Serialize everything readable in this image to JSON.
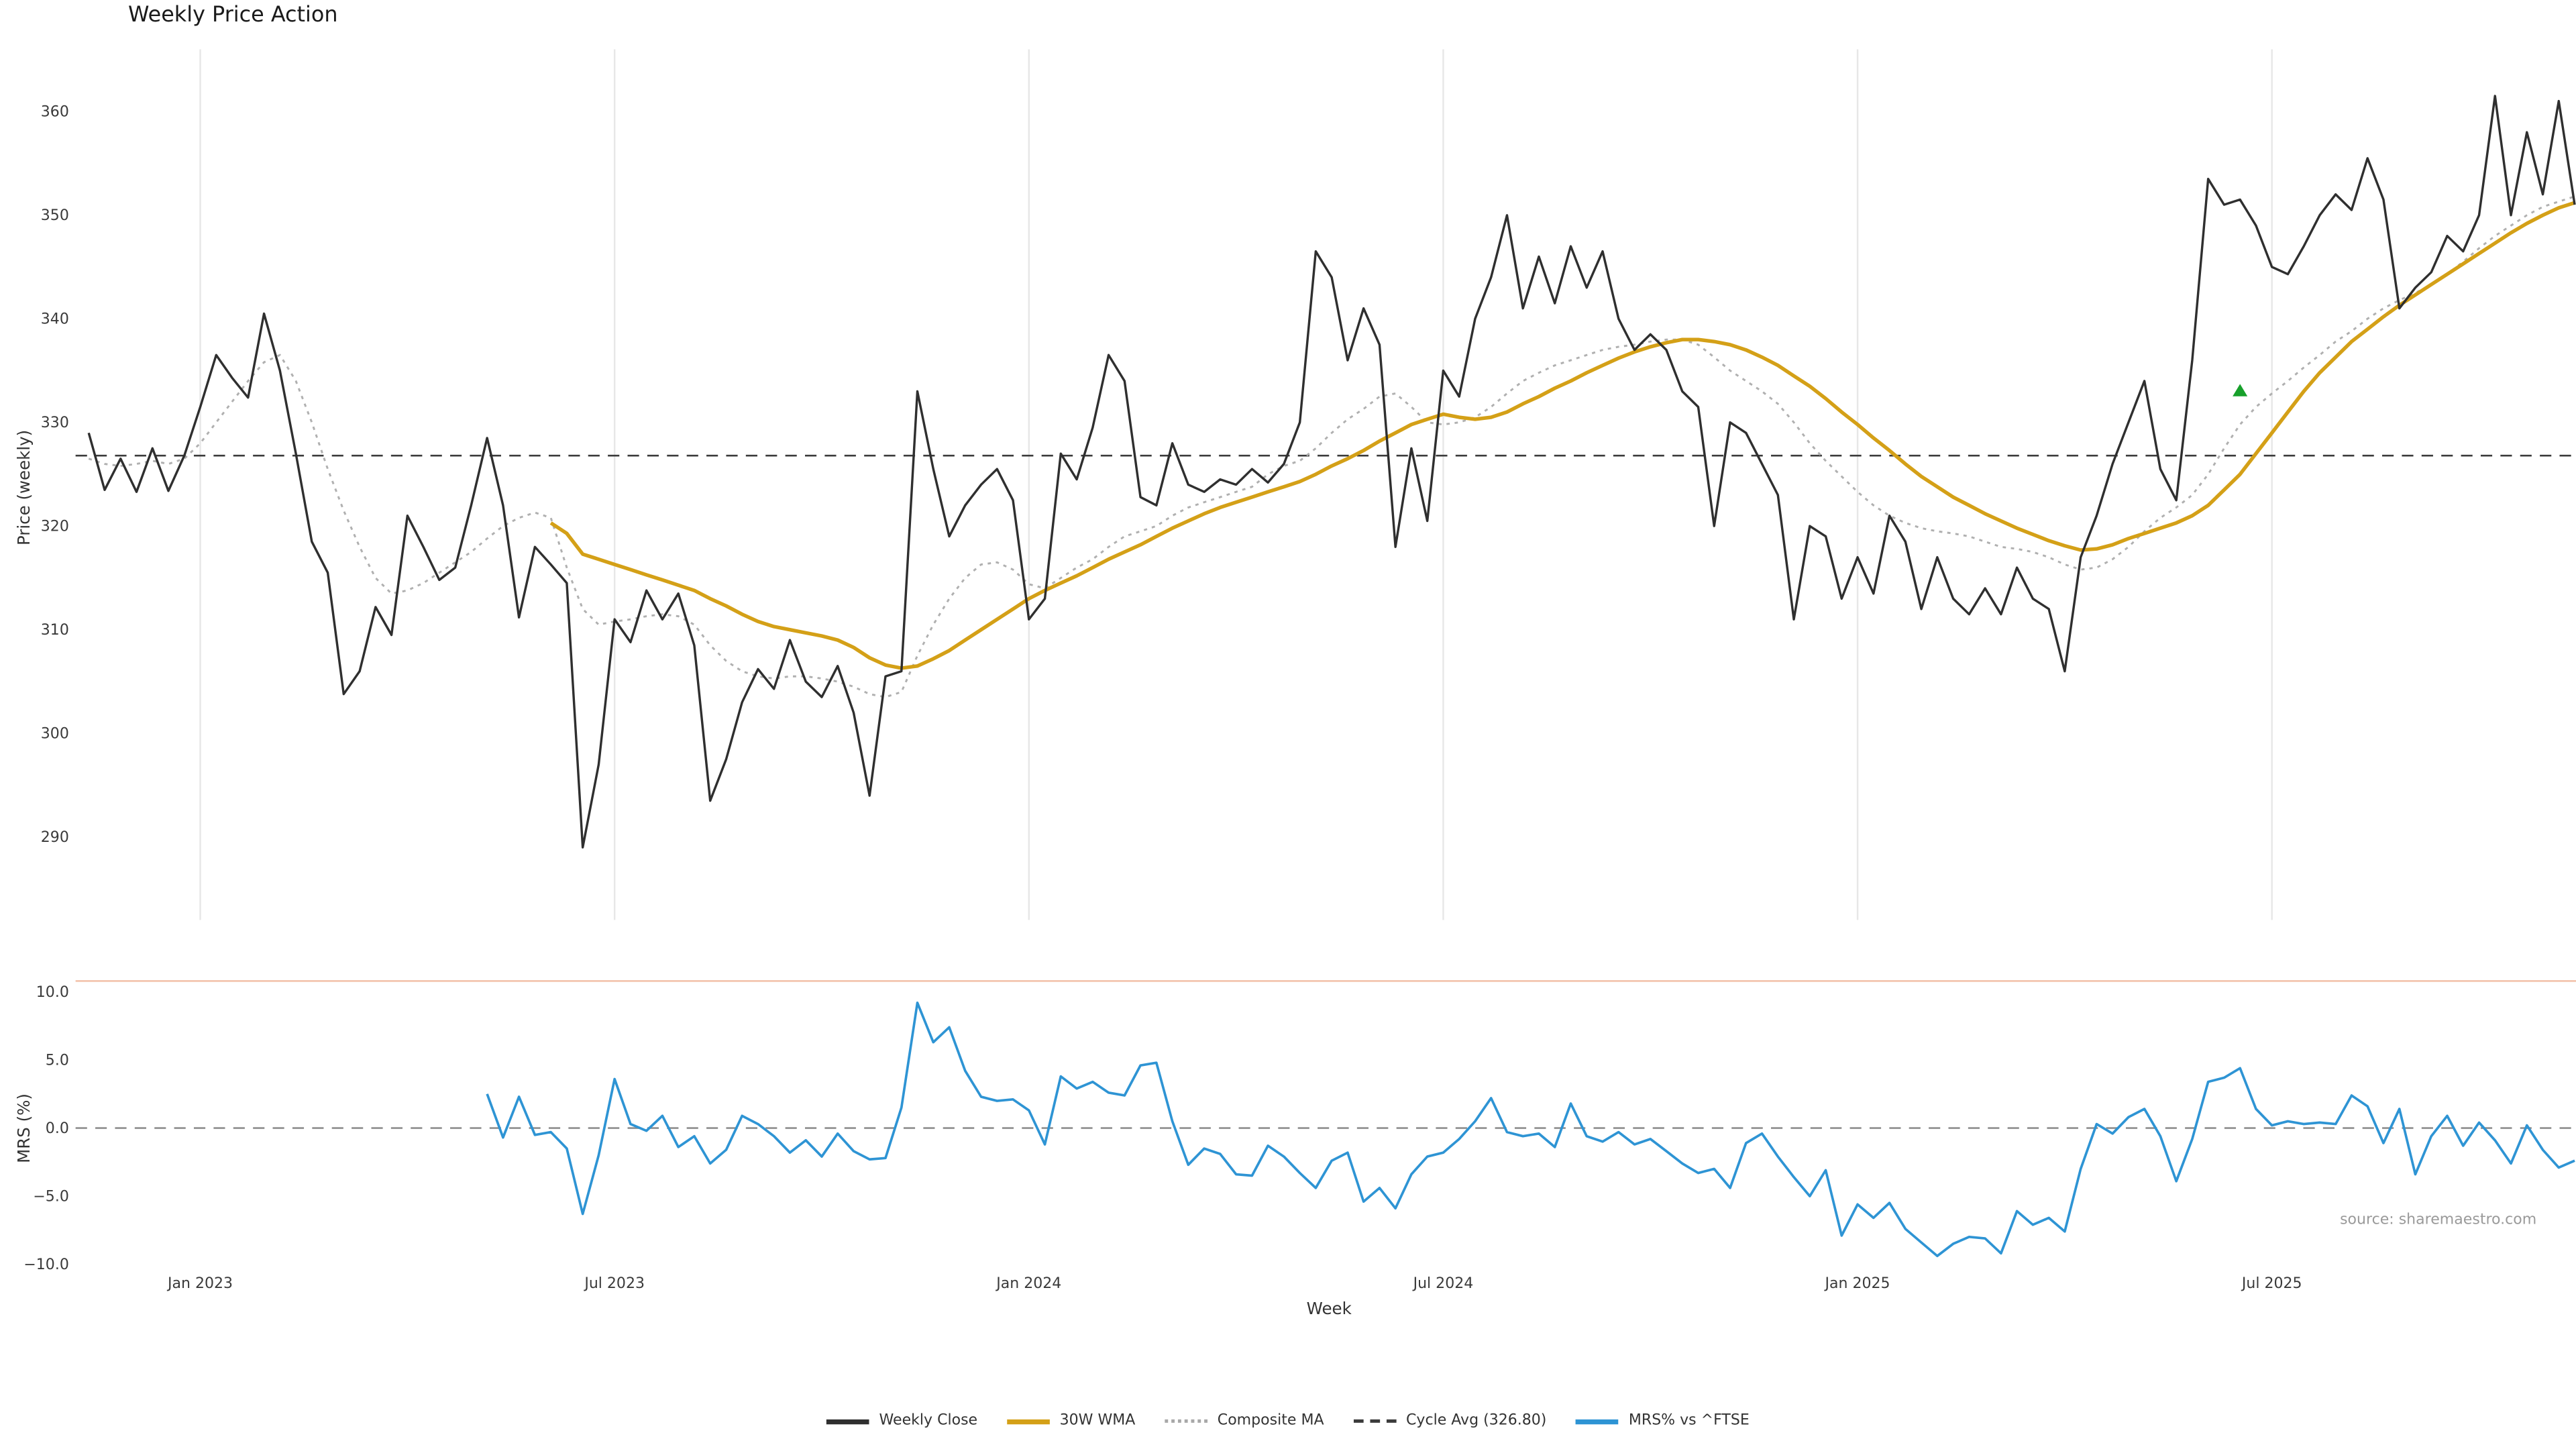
{
  "source": "source: sharemaestro.com",
  "legend": [
    {
      "label": "Weekly Close",
      "style": "solid",
      "color": "#2f2f2f"
    },
    {
      "label": "30W WMA",
      "style": "solid",
      "color": "#d4a017"
    },
    {
      "label": "Composite MA",
      "style": "dotted",
      "color": "#a8a8a8"
    },
    {
      "label": "Cycle Avg (326.80)",
      "style": "dashed",
      "color": "#3b3b3b"
    },
    {
      "label": "MRS% vs ^FTSE",
      "style": "solid",
      "color": "#2e94d4"
    }
  ],
  "chart_data": [
    {
      "type": "line",
      "title": "Weekly Price Action",
      "ylabel": "Price (weekly)",
      "ylim": [
        282,
        366
      ],
      "yticks": [
        290,
        300,
        310,
        320,
        330,
        340,
        350,
        360
      ],
      "x_note": "157 weekly points, index 0 = mid-Nov 2022",
      "x_tick_labels": [
        "Jan 2023",
        "Jul 2023",
        "Jan 2024",
        "Jul 2024",
        "Jan 2025",
        "Jul 2025"
      ],
      "x_tick_indices": [
        7,
        33,
        59,
        85,
        111,
        137
      ],
      "grid": "vertical-only",
      "reference_lines": [
        {
          "name": "Cycle Avg (326.80)",
          "value": 326.8,
          "style": "dashed",
          "color": "#3b3b3b"
        }
      ],
      "markers": [
        {
          "shape": "triangle-up",
          "x_index": 135,
          "value": 333.0,
          "color": "#17a02b"
        }
      ],
      "series": [
        {
          "name": "Weekly Close",
          "color": "#2f2f2f",
          "style": "solid",
          "values": [
            329.0,
            323.5,
            326.5,
            323.3,
            327.5,
            323.4,
            326.8,
            331.5,
            336.5,
            334.3,
            332.4,
            340.5,
            335.0,
            327.0,
            318.5,
            315.5,
            303.8,
            306.0,
            312.2,
            309.5,
            321.0,
            318.0,
            314.8,
            316.0,
            322.0,
            328.5,
            322.0,
            311.2,
            318.0,
            316.3,
            314.5,
            289.0,
            297.0,
            311.0,
            308.8,
            313.8,
            311.0,
            313.5,
            308.5,
            293.5,
            297.5,
            303.0,
            306.2,
            304.3,
            309.0,
            305.0,
            303.5,
            306.5,
            302.0,
            294.0,
            305.5,
            306.0,
            333.0,
            325.5,
            319.0,
            322.0,
            324.0,
            325.5,
            322.5,
            311.0,
            313.0,
            327.0,
            324.5,
            329.5,
            336.5,
            334.0,
            322.8,
            322.0,
            328.0,
            324.0,
            323.3,
            324.5,
            324.0,
            325.5,
            324.2,
            326.0,
            330.0,
            346.5,
            344.0,
            336.0,
            341.0,
            337.5,
            318.0,
            327.5,
            320.5,
            335.0,
            332.5,
            340.0,
            344.0,
            350.0,
            341.0,
            346.0,
            341.5,
            347.0,
            343.0,
            346.5,
            340.0,
            337.0,
            338.5,
            337.0,
            333.0,
            331.5,
            320.0,
            330.0,
            329.0,
            326.0,
            323.0,
            311.0,
            320.0,
            319.0,
            313.0,
            317.0,
            313.5,
            321.0,
            318.5,
            312.0,
            317.0,
            313.0,
            311.5,
            314.0,
            311.5,
            316.0,
            313.0,
            312.0,
            306.0,
            317.0,
            321.0,
            326.0,
            330.0,
            334.0,
            325.5,
            322.5,
            336.0,
            353.5,
            351.0,
            351.5,
            349.0,
            345.0,
            344.3,
            347.0,
            350.0,
            352.0,
            350.5,
            355.5,
            351.5,
            341.0,
            343.0,
            344.5,
            348.0,
            346.5,
            350.0,
            361.5,
            350.0,
            358.0,
            352.0,
            361.0,
            351.0
          ]
        },
        {
          "name": "30W WMA",
          "color": "#d4a017",
          "style": "solid",
          "values": [
            null,
            null,
            null,
            null,
            null,
            null,
            null,
            null,
            null,
            null,
            null,
            null,
            null,
            null,
            null,
            null,
            null,
            null,
            null,
            null,
            null,
            null,
            null,
            null,
            null,
            null,
            null,
            null,
            null,
            320.3,
            319.3,
            317.3,
            316.8,
            316.3,
            315.8,
            315.3,
            314.8,
            314.3,
            313.8,
            313.0,
            312.3,
            311.5,
            310.8,
            310.3,
            310.0,
            309.7,
            309.4,
            309.0,
            308.3,
            307.3,
            306.6,
            306.3,
            306.5,
            307.2,
            308.0,
            309.0,
            310.0,
            311.0,
            312.0,
            313.0,
            313.8,
            314.5,
            315.2,
            316.0,
            316.8,
            317.5,
            318.2,
            319.0,
            319.8,
            320.5,
            321.2,
            321.8,
            322.3,
            322.8,
            323.3,
            323.8,
            324.3,
            325.0,
            325.8,
            326.5,
            327.3,
            328.2,
            329.0,
            329.8,
            330.3,
            330.8,
            330.5,
            330.3,
            330.5,
            331.0,
            331.8,
            332.5,
            333.3,
            334.0,
            334.8,
            335.5,
            336.2,
            336.8,
            337.3,
            337.7,
            338.0,
            338.0,
            337.8,
            337.5,
            337.0,
            336.3,
            335.5,
            334.5,
            333.5,
            332.3,
            331.0,
            329.8,
            328.5,
            327.3,
            326.0,
            324.8,
            323.8,
            322.8,
            322.0,
            321.2,
            320.5,
            319.8,
            319.2,
            318.6,
            318.1,
            317.7,
            317.8,
            318.2,
            318.8,
            319.3,
            319.8,
            320.3,
            321.0,
            322.0,
            323.5,
            325.0,
            327.0,
            329.0,
            331.0,
            333.0,
            334.8,
            336.3,
            337.8,
            339.0,
            340.2,
            341.3,
            342.3,
            343.3,
            344.3,
            345.3,
            346.3,
            347.3,
            348.3,
            349.2,
            350.0,
            350.7,
            351.2
          ]
        },
        {
          "name": "Composite MA",
          "color": "#b0b0b0",
          "style": "dotted",
          "values": [
            326.5,
            326.0,
            325.8,
            326.0,
            326.3,
            326.0,
            326.5,
            328.0,
            330.0,
            332.0,
            334.0,
            335.8,
            336.5,
            334.0,
            330.0,
            325.5,
            321.5,
            318.0,
            315.0,
            313.5,
            313.8,
            314.5,
            315.5,
            316.5,
            317.5,
            318.8,
            320.0,
            320.8,
            321.3,
            320.8,
            316.0,
            312.0,
            310.5,
            310.8,
            311.0,
            311.3,
            311.5,
            311.3,
            310.5,
            308.5,
            307.0,
            306.0,
            305.5,
            305.3,
            305.5,
            305.5,
            305.3,
            305.0,
            304.5,
            303.8,
            303.5,
            304.0,
            307.5,
            310.5,
            313.0,
            315.0,
            316.3,
            316.5,
            315.8,
            314.4,
            314.0,
            315.0,
            316.0,
            316.8,
            318.0,
            319.0,
            319.5,
            320.0,
            321.0,
            321.8,
            322.3,
            322.8,
            323.3,
            323.8,
            325.0,
            325.8,
            326.3,
            327.5,
            329.0,
            330.3,
            331.3,
            332.5,
            332.8,
            331.5,
            330.0,
            329.8,
            330.0,
            330.5,
            331.5,
            332.8,
            334.0,
            334.8,
            335.5,
            336.0,
            336.5,
            337.0,
            337.3,
            337.5,
            337.8,
            338.0,
            338.0,
            337.5,
            336.3,
            335.0,
            334.0,
            333.0,
            331.8,
            330.0,
            328.0,
            326.3,
            324.8,
            323.3,
            322.0,
            321.0,
            320.3,
            319.8,
            319.5,
            319.3,
            319.0,
            318.5,
            318.0,
            317.8,
            317.5,
            317.0,
            316.3,
            315.8,
            316.0,
            316.8,
            318.0,
            319.5,
            320.8,
            321.8,
            323.0,
            325.0,
            327.5,
            329.8,
            331.5,
            332.8,
            334.0,
            335.3,
            336.5,
            337.8,
            338.8,
            340.0,
            341.0,
            341.8,
            342.5,
            343.3,
            344.3,
            345.5,
            346.8,
            348.0,
            349.0,
            350.0,
            350.8,
            351.3,
            351.8
          ]
        }
      ]
    },
    {
      "type": "line",
      "ylabel": "MRS (%)",
      "xlabel": "Week",
      "ylim": [
        -10.3,
        11.3
      ],
      "yticks": [
        -10.0,
        -5.0,
        0.0,
        5.0,
        10.0
      ],
      "reference_lines": [
        {
          "name": "zero",
          "value": 0.0,
          "style": "dashed",
          "color": "#8f8f8f"
        },
        {
          "name": "upper-band",
          "value": 10.8,
          "style": "solid",
          "color": "#f2c0a8"
        }
      ],
      "series": [
        {
          "name": "MRS% vs ^FTSE",
          "color": "#2e94d4",
          "style": "solid",
          "values": [
            null,
            null,
            null,
            null,
            null,
            null,
            null,
            null,
            null,
            null,
            null,
            null,
            null,
            null,
            null,
            null,
            null,
            null,
            null,
            null,
            null,
            null,
            null,
            null,
            null,
            2.5,
            -0.7,
            2.3,
            -0.5,
            -0.3,
            -1.5,
            -6.3,
            -2.0,
            3.6,
            0.3,
            -0.2,
            0.9,
            -1.4,
            -0.6,
            -2.6,
            -1.6,
            0.9,
            0.3,
            -0.6,
            -1.8,
            -0.9,
            -2.1,
            -0.4,
            -1.7,
            -2.3,
            -2.2,
            1.5,
            9.2,
            6.3,
            7.4,
            4.2,
            2.3,
            2.0,
            2.1,
            1.3,
            -1.2,
            3.8,
            2.9,
            3.4,
            2.6,
            2.4,
            4.6,
            4.8,
            0.5,
            -2.7,
            -1.5,
            -1.9,
            -3.4,
            -3.5,
            -1.3,
            -2.1,
            -3.3,
            -4.4,
            -2.4,
            -1.8,
            -5.4,
            -4.4,
            -5.9,
            -3.4,
            -2.1,
            -1.8,
            -0.8,
            0.5,
            2.2,
            -0.3,
            -0.6,
            -0.4,
            -1.4,
            1.8,
            -0.6,
            -1.0,
            -0.3,
            -1.2,
            -0.8,
            -1.7,
            -2.6,
            -3.3,
            -3.0,
            -4.4,
            -1.1,
            -0.4,
            -2.1,
            -3.6,
            -5.0,
            -3.1,
            -7.9,
            -5.6,
            -6.6,
            -5.5,
            -7.4,
            -8.4,
            -9.4,
            -8.5,
            -8.0,
            -8.1,
            -9.2,
            -6.1,
            -7.1,
            -6.6,
            -7.6,
            -3.0,
            0.3,
            -0.4,
            0.8,
            1.4,
            -0.6,
            -3.9,
            -0.8,
            3.4,
            3.7,
            4.4,
            1.4,
            0.2,
            0.5,
            0.3,
            0.4,
            0.3,
            2.4,
            1.6,
            -1.1,
            1.4,
            -3.4,
            -0.6,
            0.9,
            -1.3,
            0.4,
            -0.9,
            -2.6,
            0.2,
            -1.6,
            -2.9,
            -2.4
          ]
        }
      ]
    }
  ]
}
